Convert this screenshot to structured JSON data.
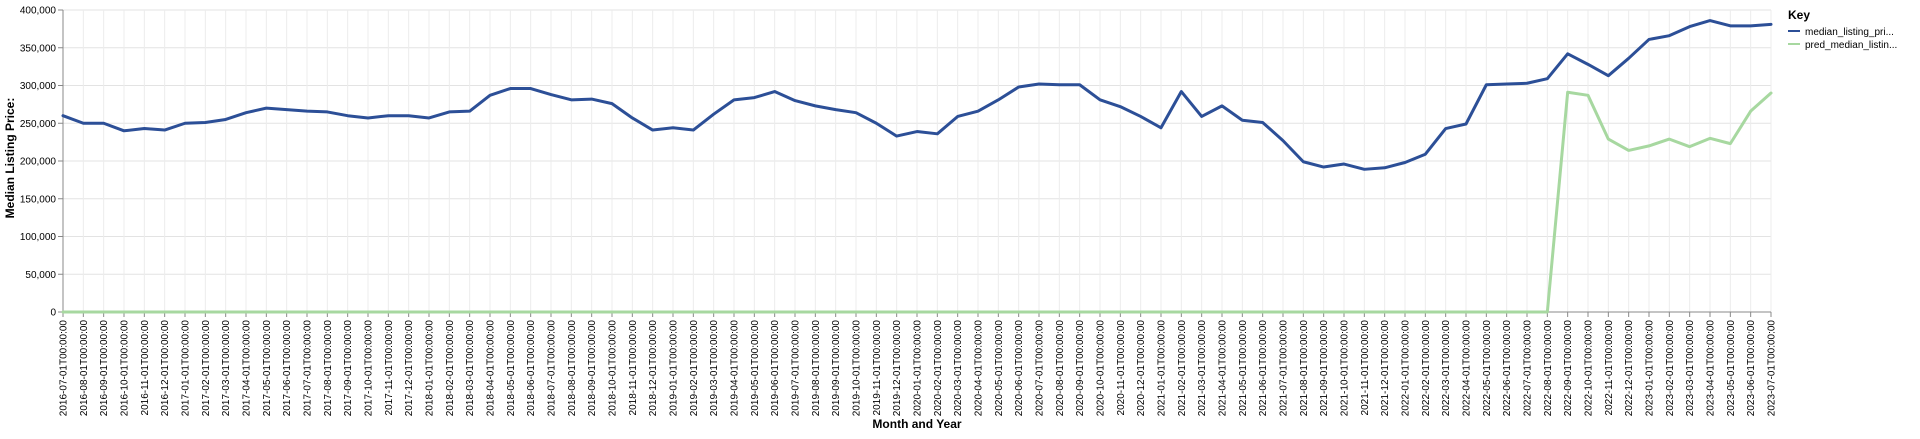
{
  "chart_data": {
    "type": "line",
    "xlabel": "Month and Year",
    "ylabel": "Median Listing Price:",
    "ylim": [
      0,
      400000
    ],
    "y_ticks": [
      0,
      50000,
      100000,
      150000,
      200000,
      250000,
      300000,
      350000,
      400000
    ],
    "y_tick_labels": [
      "0",
      "50,000",
      "100,000",
      "150,000",
      "200,000",
      "250,000",
      "300,000",
      "350,000",
      "400,000"
    ],
    "grid": true,
    "legend": {
      "title": "Key",
      "placement": "top-right"
    },
    "x": [
      "2016-07-01T00:00:00",
      "2016-08-01T00:00:00",
      "2016-09-01T00:00:00",
      "2016-10-01T00:00:00",
      "2016-11-01T00:00:00",
      "2016-12-01T00:00:00",
      "2017-01-01T00:00:00",
      "2017-02-01T00:00:00",
      "2017-03-01T00:00:00",
      "2017-04-01T00:00:00",
      "2017-05-01T00:00:00",
      "2017-06-01T00:00:00",
      "2017-07-01T00:00:00",
      "2017-08-01T00:00:00",
      "2017-09-01T00:00:00",
      "2017-10-01T00:00:00",
      "2017-11-01T00:00:00",
      "2017-12-01T00:00:00",
      "2018-01-01T00:00:00",
      "2018-02-01T00:00:00",
      "2018-03-01T00:00:00",
      "2018-04-01T00:00:00",
      "2018-05-01T00:00:00",
      "2018-06-01T00:00:00",
      "2018-07-01T00:00:00",
      "2018-08-01T00:00:00",
      "2018-09-01T00:00:00",
      "2018-10-01T00:00:00",
      "2018-11-01T00:00:00",
      "2018-12-01T00:00:00",
      "2019-01-01T00:00:00",
      "2019-02-01T00:00:00",
      "2019-03-01T00:00:00",
      "2019-04-01T00:00:00",
      "2019-05-01T00:00:00",
      "2019-06-01T00:00:00",
      "2019-07-01T00:00:00",
      "2019-08-01T00:00:00",
      "2019-09-01T00:00:00",
      "2019-10-01T00:00:00",
      "2019-11-01T00:00:00",
      "2019-12-01T00:00:00",
      "2020-01-01T00:00:00",
      "2020-02-01T00:00:00",
      "2020-03-01T00:00:00",
      "2020-04-01T00:00:00",
      "2020-05-01T00:00:00",
      "2020-06-01T00:00:00",
      "2020-07-01T00:00:00",
      "2020-08-01T00:00:00",
      "2020-09-01T00:00:00",
      "2020-10-01T00:00:00",
      "2020-11-01T00:00:00",
      "2020-12-01T00:00:00",
      "2021-01-01T00:00:00",
      "2021-02-01T00:00:00",
      "2021-03-01T00:00:00",
      "2021-04-01T00:00:00",
      "2021-05-01T00:00:00",
      "2021-06-01T00:00:00",
      "2021-07-01T00:00:00",
      "2021-08-01T00:00:00",
      "2021-09-01T00:00:00",
      "2021-10-01T00:00:00",
      "2021-11-01T00:00:00",
      "2021-12-01T00:00:00",
      "2022-01-01T00:00:00",
      "2022-02-01T00:00:00",
      "2022-03-01T00:00:00",
      "2022-04-01T00:00:00",
      "2022-05-01T00:00:00",
      "2022-06-01T00:00:00",
      "2022-07-01T00:00:00",
      "2022-08-01T00:00:00",
      "2022-09-01T00:00:00",
      "2022-10-01T00:00:00",
      "2022-11-01T00:00:00",
      "2022-12-01T00:00:00",
      "2023-01-01T00:00:00",
      "2023-02-01T00:00:00",
      "2023-03-01T00:00:00",
      "2023-04-01T00:00:00",
      "2023-05-01T00:00:00",
      "2023-06-01T00:00:00",
      "2023-07-01T00:00:00"
    ],
    "series": [
      {
        "name": "median_listing_pri...",
        "color": "#2c4f97",
        "values": [
          260000,
          250000,
          250000,
          240000,
          243000,
          241000,
          250000,
          251000,
          255000,
          264000,
          270000,
          268000,
          266000,
          265000,
          260000,
          257000,
          260000,
          260000,
          257000,
          265000,
          266000,
          287000,
          296000,
          296000,
          288000,
          281000,
          282000,
          276000,
          257000,
          241000,
          244000,
          241000,
          262000,
          281000,
          284000,
          292000,
          280000,
          273000,
          268000,
          264000,
          250000,
          233000,
          239000,
          236000,
          259000,
          266000,
          281000,
          298000,
          302000,
          301000,
          301000,
          281000,
          272000,
          259000,
          244000,
          292000,
          259000,
          273000,
          254000,
          251000,
          227000,
          199000,
          192000,
          196000,
          189000,
          191000,
          198000,
          209000,
          243000,
          249000,
          301000,
          302000,
          303000,
          309000,
          342000,
          328000,
          313000,
          336000,
          361000,
          366000,
          378000,
          386000,
          379000,
          379000,
          381000
        ]
      },
      {
        "name": "pred_median_listin...",
        "color": "#a7d8a0",
        "values": [
          0,
          0,
          0,
          0,
          0,
          0,
          0,
          0,
          0,
          0,
          0,
          0,
          0,
          0,
          0,
          0,
          0,
          0,
          0,
          0,
          0,
          0,
          0,
          0,
          0,
          0,
          0,
          0,
          0,
          0,
          0,
          0,
          0,
          0,
          0,
          0,
          0,
          0,
          0,
          0,
          0,
          0,
          0,
          0,
          0,
          0,
          0,
          0,
          0,
          0,
          0,
          0,
          0,
          0,
          0,
          0,
          0,
          0,
          0,
          0,
          0,
          0,
          0,
          0,
          0,
          0,
          0,
          0,
          0,
          0,
          0,
          0,
          0,
          0,
          291000,
          287000,
          229000,
          214000,
          220000,
          229000,
          219000,
          230000,
          223000,
          266000,
          290000
        ]
      }
    ]
  }
}
